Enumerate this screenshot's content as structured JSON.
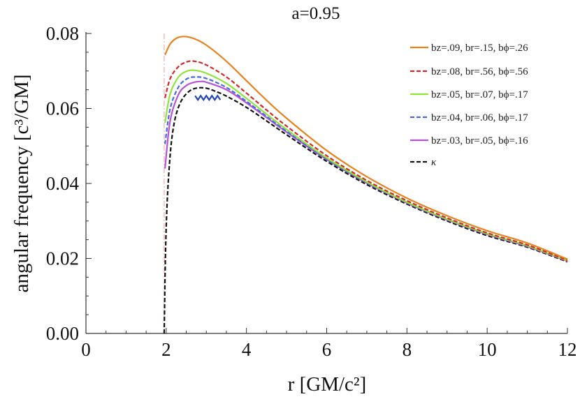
{
  "chart_data": {
    "type": "line",
    "title": "a=0.95",
    "xlabel": "r [GM/c²]",
    "ylabel": "angular frequency [c³/GM]",
    "xlim": [
      0,
      12
    ],
    "ylim": [
      0,
      0.08
    ],
    "xticks": [
      "0",
      "2",
      "4",
      "6",
      "8",
      "10",
      "12"
    ],
    "yticks": [
      "0.00",
      "0.02",
      "0.04",
      "0.06",
      "0.08"
    ],
    "vline_x": 1.95,
    "legend_position": "top-right",
    "series": [
      {
        "name": "bz=.09, br=.15, bϕ=.26",
        "color": "#e8821e",
        "dash": "solid",
        "x": [
          1.97,
          2.1,
          2.25,
          2.45,
          2.7,
          3.0,
          3.5,
          4.0,
          4.5,
          5.0,
          6.0,
          7.0,
          8.0,
          9.0,
          10.0,
          11.0,
          12.0
        ],
        "y": [
          0.0743,
          0.0772,
          0.0787,
          0.0792,
          0.0786,
          0.0769,
          0.0726,
          0.0674,
          0.0622,
          0.0574,
          0.0488,
          0.0418,
          0.0361,
          0.0314,
          0.0274,
          0.0241,
          0.0198
        ]
      },
      {
        "name": "bz=.08, br=.56, bϕ=.56",
        "color": "#d42828",
        "dash": "dashed",
        "x": [
          1.97,
          2.1,
          2.3,
          2.5,
          2.7,
          3.0,
          3.5,
          4.0,
          4.5,
          5.0,
          6.0,
          7.0,
          8.0,
          9.0,
          10.0,
          11.0,
          12.0
        ],
        "y": [
          0.0628,
          0.068,
          0.0711,
          0.0724,
          0.0726,
          0.0716,
          0.0684,
          0.0641,
          0.0596,
          0.0553,
          0.0474,
          0.0408,
          0.0354,
          0.0308,
          0.0268,
          0.0236,
          0.0195
        ]
      },
      {
        "name": "bz=.05, br=.07, bϕ=.17",
        "color": "#8fe43a",
        "dash": "solid",
        "x": [
          1.97,
          2.1,
          2.3,
          2.5,
          2.7,
          3.0,
          3.5,
          4.0,
          4.5,
          5.0,
          6.0,
          7.0,
          8.0,
          9.0,
          10.0,
          11.0,
          12.0
        ],
        "y": [
          0.0562,
          0.0639,
          0.0683,
          0.0699,
          0.0702,
          0.0694,
          0.0667,
          0.0627,
          0.0585,
          0.0544,
          0.0468,
          0.0404,
          0.035,
          0.0305,
          0.0266,
          0.0234,
          0.0194
        ]
      },
      {
        "name": "bz=.04, br=.06, bϕ=.17",
        "color": "#4668e0",
        "dash": "dashed",
        "x": [
          1.97,
          2.1,
          2.3,
          2.5,
          2.7,
          3.0,
          3.5,
          4.0,
          4.5,
          5.0,
          6.0,
          7.0,
          8.0,
          9.0,
          10.0,
          11.0,
          12.0
        ],
        "y": [
          0.0505,
          0.06,
          0.0656,
          0.0678,
          0.0684,
          0.068,
          0.0656,
          0.0619,
          0.0579,
          0.0539,
          0.0465,
          0.0402,
          0.0349,
          0.0304,
          0.0265,
          0.0233,
          0.0194
        ]
      },
      {
        "name": "bz=.03, br=.05, bϕ=.16",
        "color": "#b752d8",
        "dash": "solid",
        "x": [
          1.97,
          2.1,
          2.3,
          2.5,
          2.7,
          2.85,
          3.0,
          3.5,
          4.0,
          4.5,
          5.0,
          6.0,
          7.0,
          8.0,
          9.0,
          10.0,
          11.0,
          12.0
        ],
        "y": [
          0.044,
          0.0568,
          0.0636,
          0.0661,
          0.067,
          0.0672,
          0.067,
          0.065,
          0.0615,
          0.0576,
          0.0537,
          0.0464,
          0.0401,
          0.0348,
          0.0303,
          0.0264,
          0.0232,
          0.0193
        ]
      },
      {
        "name": "κ",
        "color": "#111111",
        "dash": "dashed",
        "x": [
          1.95,
          1.98,
          2.02,
          2.08,
          2.15,
          2.25,
          2.4,
          2.6,
          2.8,
          3.0,
          3.2,
          3.5,
          4.0,
          4.5,
          5.0,
          6.0,
          7.0,
          8.0,
          9.0,
          10.0,
          11.0,
          12.0
        ],
        "y": [
          0.0,
          0.02,
          0.034,
          0.045,
          0.0528,
          0.0585,
          0.0625,
          0.0648,
          0.0655,
          0.0654,
          0.0647,
          0.0633,
          0.0603,
          0.0567,
          0.053,
          0.0459,
          0.0397,
          0.0345,
          0.03,
          0.0261,
          0.023,
          0.0191
        ]
      }
    ],
    "zigzag_marker": {
      "color": "#2446b0",
      "x": [
        2.72,
        2.79,
        2.86,
        2.93,
        3.0,
        3.07,
        3.14,
        3.21,
        3.28,
        3.35
      ],
      "y": [
        0.0634,
        0.0623,
        0.0634,
        0.0623,
        0.0634,
        0.0623,
        0.0634,
        0.0623,
        0.0634,
        0.0623
      ]
    }
  }
}
